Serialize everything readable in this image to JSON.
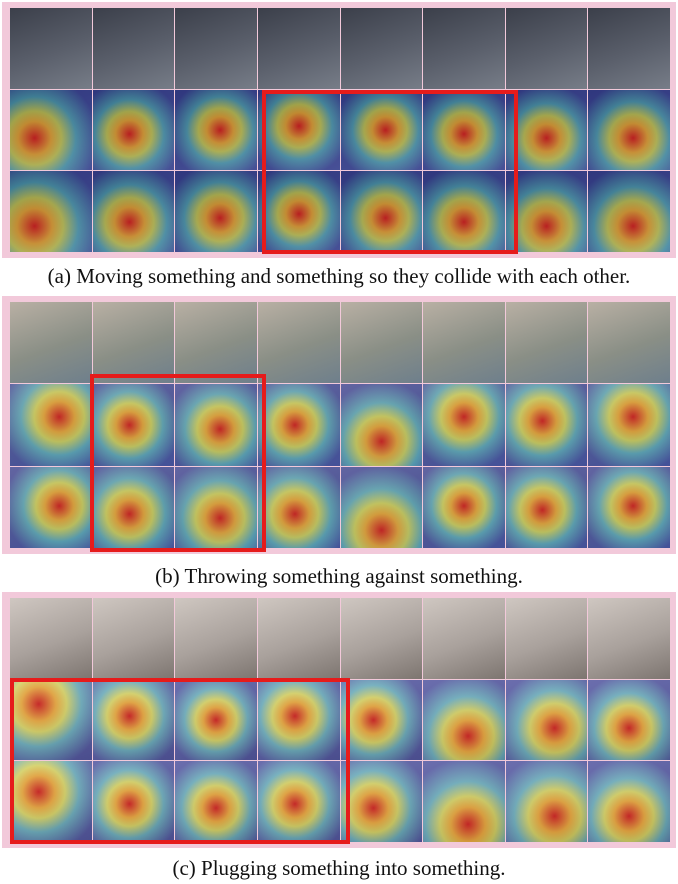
{
  "captions": {
    "a": "(a) Moving something and something so they collide with each other.",
    "b": "(b) Throwing something against something.",
    "c": "(c) Plugging something into something."
  },
  "colors": {
    "border": "#f2c9da",
    "highlight": "#e61b1b"
  },
  "panels": [
    {
      "id": "a",
      "rows": 3,
      "cols": 8,
      "highlight_cols": [
        3,
        5
      ],
      "highlight_rows": [
        1,
        2
      ],
      "theme": "person"
    },
    {
      "id": "b",
      "rows": 3,
      "cols": 8,
      "highlight_cols": [
        1,
        2
      ],
      "highlight_rows": [
        1,
        2
      ],
      "theme": "wall"
    },
    {
      "id": "c",
      "rows": 3,
      "cols": 8,
      "highlight_cols": [
        0,
        3
      ],
      "highlight_rows": [
        1,
        2
      ],
      "theme": "socket"
    }
  ]
}
